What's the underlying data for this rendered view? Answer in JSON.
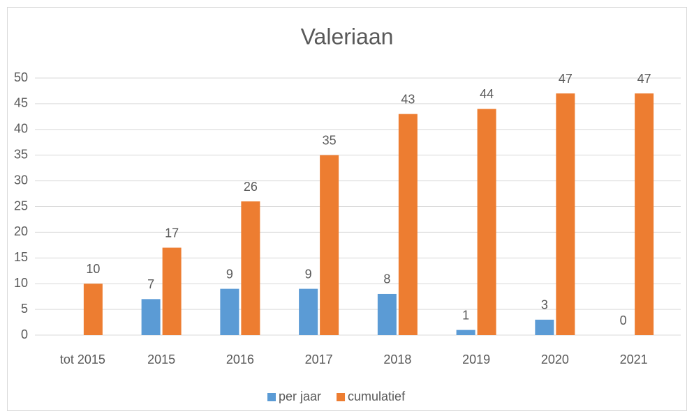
{
  "chart_data": {
    "type": "bar",
    "title": "Valeriaan",
    "categories": [
      "tot 2015",
      "2015",
      "2016",
      "2017",
      "2018",
      "2019",
      "2020",
      "2021"
    ],
    "series": [
      {
        "name": "per jaar",
        "color": "#5b9bd5",
        "values": [
          null,
          7,
          9,
          9,
          8,
          1,
          3,
          0
        ]
      },
      {
        "name": "cumulatief",
        "color": "#ed7d31",
        "values": [
          10,
          17,
          26,
          35,
          43,
          44,
          47,
          47
        ]
      }
    ],
    "ylim": [
      0,
      50
    ],
    "yticks": [
      0,
      5,
      10,
      15,
      20,
      25,
      30,
      35,
      40,
      45,
      50
    ],
    "grid": true,
    "legend": "bottom"
  }
}
